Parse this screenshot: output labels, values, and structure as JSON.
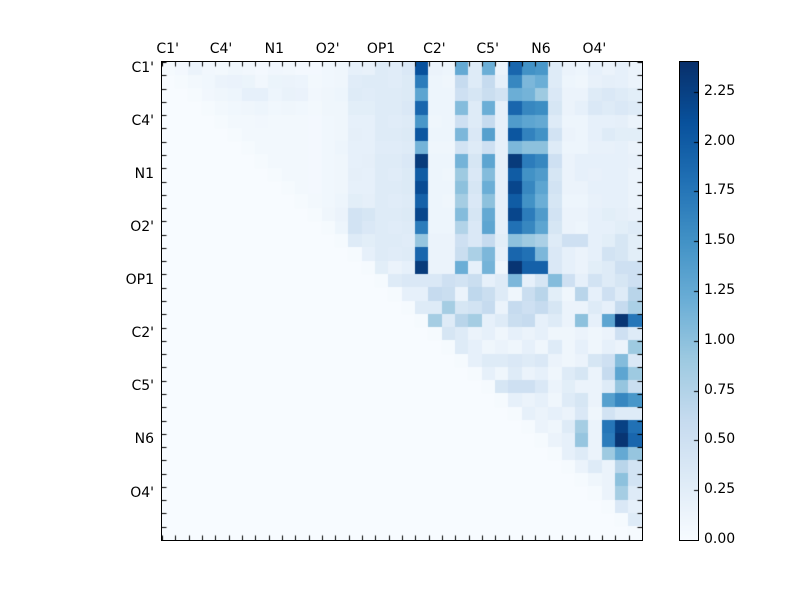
{
  "figure": {
    "background": "#ffffff",
    "axis_color": "#000000"
  },
  "chart_data": {
    "type": "heatmap",
    "title": "",
    "xlabel": "",
    "ylabel": "",
    "n": 36,
    "grid": false,
    "legend_position": "colorbar-right",
    "axis_tick_labels": [
      "C1'",
      "C4'",
      "N1",
      "O2'",
      "OP1",
      "C2'",
      "C5'",
      "N6",
      "O4'"
    ],
    "label_step": 4,
    "label_offset": 0.5,
    "vmin": 0.0,
    "vmax": 2.4,
    "colorbar": {
      "tick_values": [
        0.0,
        0.25,
        0.5,
        0.75,
        1.0,
        1.25,
        1.5,
        1.75,
        2.0,
        2.25
      ],
      "tick_labels": [
        "0.00",
        "0.25",
        "0.50",
        "0.75",
        "1.00",
        "1.25",
        "1.50",
        "1.75",
        "2.00",
        "2.25"
      ]
    },
    "colormap": {
      "name": "Blues",
      "stops": [
        {
          "t": 0.0,
          "c": "#f7fbff"
        },
        {
          "t": 0.125,
          "c": "#deebf7"
        },
        {
          "t": 0.25,
          "c": "#c6dbef"
        },
        {
          "t": 0.375,
          "c": "#9ecae1"
        },
        {
          "t": 0.5,
          "c": "#6baed6"
        },
        {
          "t": 0.625,
          "c": "#4292c6"
        },
        {
          "t": 0.75,
          "c": "#2171b5"
        },
        {
          "t": 0.875,
          "c": "#08519c"
        },
        {
          "t": 1.0,
          "c": "#08306b"
        }
      ]
    },
    "matrix": [
      [
        0.02,
        0.05,
        0.15,
        0.07,
        0.06,
        0.1,
        0.07,
        0.05,
        0.09,
        0.07,
        0.05,
        0.05,
        0.08,
        0.1,
        0.2,
        0.18,
        0.3,
        0.28,
        0.35,
        2.1,
        0.15,
        0.12,
        1.25,
        0.3,
        1.2,
        0.15,
        1.9,
        1.5,
        1.45,
        0.3,
        0.15,
        0.12,
        0.2,
        0.15,
        0.2,
        0.15
      ],
      [
        0,
        0.02,
        0.06,
        0.08,
        0.15,
        0.16,
        0.14,
        0.07,
        0.14,
        0.15,
        0.13,
        0.06,
        0.08,
        0.1,
        0.28,
        0.3,
        0.3,
        0.28,
        0.32,
        1.7,
        0.12,
        0.1,
        0.6,
        0.3,
        0.6,
        0.2,
        1.6,
        1.1,
        1.2,
        0.3,
        0.12,
        0.1,
        0.18,
        0.22,
        0.2,
        0.15
      ],
      [
        0,
        0,
        0.02,
        0.07,
        0.1,
        0.12,
        0.2,
        0.2,
        0.12,
        0.17,
        0.16,
        0.07,
        0.1,
        0.12,
        0.3,
        0.28,
        0.3,
        0.3,
        0.32,
        1.3,
        0.12,
        0.12,
        0.5,
        0.4,
        0.55,
        0.45,
        1.2,
        1.15,
        0.9,
        0.35,
        0.15,
        0.15,
        0.3,
        0.35,
        0.3,
        0.25
      ],
      [
        0,
        0,
        0,
        0.02,
        0.06,
        0.08,
        0.1,
        0.12,
        0.08,
        0.1,
        0.08,
        0.06,
        0.1,
        0.1,
        0.25,
        0.25,
        0.3,
        0.3,
        0.35,
        1.9,
        0.12,
        0.12,
        1.05,
        0.3,
        1.2,
        0.2,
        1.9,
        1.6,
        1.55,
        0.4,
        0.15,
        0.2,
        0.35,
        0.3,
        0.35,
        0.3
      ],
      [
        0,
        0,
        0,
        0,
        0.02,
        0.06,
        0.06,
        0.07,
        0.06,
        0.06,
        0.06,
        0.05,
        0.08,
        0.1,
        0.2,
        0.2,
        0.3,
        0.28,
        0.3,
        1.45,
        0.1,
        0.12,
        0.5,
        0.3,
        0.6,
        0.2,
        1.4,
        1.3,
        1.25,
        0.3,
        0.12,
        0.12,
        0.2,
        0.2,
        0.22,
        0.15
      ],
      [
        0,
        0,
        0,
        0,
        0,
        0.02,
        0.06,
        0.06,
        0.06,
        0.06,
        0.06,
        0.05,
        0.08,
        0.1,
        0.22,
        0.2,
        0.3,
        0.3,
        0.32,
        2.05,
        0.12,
        0.12,
        1.1,
        0.35,
        1.35,
        0.2,
        2.05,
        1.65,
        1.5,
        0.45,
        0.15,
        0.12,
        0.2,
        0.3,
        0.25,
        0.25
      ],
      [
        0,
        0,
        0,
        0,
        0,
        0,
        0.02,
        0.06,
        0.06,
        0.06,
        0.06,
        0.05,
        0.08,
        0.12,
        0.2,
        0.2,
        0.28,
        0.28,
        0.3,
        1.15,
        0.1,
        0.1,
        0.45,
        0.3,
        0.5,
        0.2,
        1.1,
        1.0,
        1.0,
        0.3,
        0.12,
        0.12,
        0.18,
        0.18,
        0.2,
        0.15
      ],
      [
        0,
        0,
        0,
        0,
        0,
        0,
        0,
        0.02,
        0.06,
        0.06,
        0.06,
        0.05,
        0.08,
        0.1,
        0.2,
        0.22,
        0.3,
        0.3,
        0.35,
        2.3,
        0.12,
        0.12,
        1.15,
        0.4,
        1.3,
        0.2,
        2.3,
        1.7,
        1.6,
        0.5,
        0.15,
        0.2,
        0.2,
        0.2,
        0.2,
        0.18
      ],
      [
        0,
        0,
        0,
        0,
        0,
        0,
        0,
        0,
        0.02,
        0.06,
        0.06,
        0.05,
        0.08,
        0.1,
        0.22,
        0.2,
        0.3,
        0.28,
        0.32,
        2.0,
        0.12,
        0.1,
        0.9,
        0.35,
        1.05,
        0.2,
        2.0,
        1.5,
        1.4,
        0.4,
        0.15,
        0.2,
        0.18,
        0.2,
        0.2,
        0.15
      ],
      [
        0,
        0,
        0,
        0,
        0,
        0,
        0,
        0,
        0,
        0.02,
        0.06,
        0.05,
        0.08,
        0.1,
        0.2,
        0.2,
        0.3,
        0.3,
        0.32,
        2.15,
        0.12,
        0.12,
        1.0,
        0.4,
        1.2,
        0.2,
        2.2,
        1.6,
        1.3,
        0.45,
        0.15,
        0.15,
        0.2,
        0.2,
        0.2,
        0.15
      ],
      [
        0,
        0,
        0,
        0,
        0,
        0,
        0,
        0,
        0,
        0,
        0.02,
        0.06,
        0.08,
        0.12,
        0.25,
        0.22,
        0.3,
        0.28,
        0.3,
        1.95,
        0.12,
        0.1,
        0.85,
        0.35,
        1.0,
        0.2,
        2.0,
        1.5,
        1.2,
        0.4,
        0.12,
        0.12,
        0.18,
        0.2,
        0.2,
        0.15
      ],
      [
        0,
        0,
        0,
        0,
        0,
        0,
        0,
        0,
        0,
        0,
        0,
        0.02,
        0.1,
        0.15,
        0.45,
        0.4,
        0.3,
        0.3,
        0.32,
        2.2,
        0.12,
        0.12,
        1.05,
        0.4,
        1.25,
        0.2,
        2.2,
        1.7,
        1.4,
        0.45,
        0.15,
        0.15,
        0.2,
        0.25,
        0.22,
        0.18
      ],
      [
        0,
        0,
        0,
        0,
        0,
        0,
        0,
        0,
        0,
        0,
        0,
        0,
        0.02,
        0.12,
        0.45,
        0.35,
        0.3,
        0.28,
        0.3,
        1.7,
        0.12,
        0.12,
        0.75,
        0.35,
        1.3,
        0.2,
        1.8,
        1.6,
        1.3,
        0.4,
        0.15,
        0.12,
        0.2,
        0.2,
        0.25,
        0.3
      ],
      [
        0,
        0,
        0,
        0,
        0,
        0,
        0,
        0,
        0,
        0,
        0,
        0,
        0,
        0.02,
        0.3,
        0.25,
        0.3,
        0.3,
        0.28,
        0.95,
        0.15,
        0.15,
        0.5,
        0.35,
        0.6,
        0.25,
        1.0,
        0.9,
        0.8,
        0.3,
        0.5,
        0.5,
        0.2,
        0.25,
        0.4,
        0.25
      ],
      [
        0,
        0,
        0,
        0,
        0,
        0,
        0,
        0,
        0,
        0,
        0,
        0,
        0,
        0,
        0.02,
        0.2,
        0.3,
        0.28,
        0.3,
        1.9,
        0.15,
        0.15,
        0.55,
        0.8,
        1.1,
        0.2,
        1.9,
        1.8,
        1.1,
        0.35,
        0.2,
        0.15,
        0.2,
        0.45,
        0.4,
        0.25
      ],
      [
        0,
        0,
        0,
        0,
        0,
        0,
        0,
        0,
        0,
        0,
        0,
        0,
        0,
        0,
        0,
        0.02,
        0.25,
        0.15,
        0.2,
        2.3,
        0.15,
        0.15,
        1.2,
        0.2,
        1.15,
        0.1,
        2.35,
        1.95,
        1.95,
        0.35,
        0.2,
        0.15,
        0.25,
        0.3,
        0.5,
        0.5
      ],
      [
        0,
        0,
        0,
        0,
        0,
        0,
        0,
        0,
        0,
        0,
        0,
        0,
        0,
        0,
        0,
        0,
        0.02,
        0.3,
        0.35,
        0.35,
        0.35,
        0.5,
        0.45,
        0.55,
        0.2,
        0.3,
        1.1,
        0.2,
        0.4,
        1.05,
        0.5,
        0.2,
        0.45,
        0.3,
        0.4,
        0.5
      ],
      [
        0,
        0,
        0,
        0,
        0,
        0,
        0,
        0,
        0,
        0,
        0,
        0,
        0,
        0,
        0,
        0,
        0,
        0.02,
        0.2,
        0.2,
        0.6,
        0.55,
        0.15,
        0.65,
        0.55,
        0.3,
        0.1,
        0.55,
        0.7,
        0.25,
        0.1,
        0.7,
        0.2,
        0.5,
        0.3,
        0.7
      ],
      [
        0,
        0,
        0,
        0,
        0,
        0,
        0,
        0,
        0,
        0,
        0,
        0,
        0,
        0,
        0,
        0,
        0,
        0,
        0.02,
        0.3,
        0.3,
        0.85,
        0.4,
        0.45,
        0.6,
        0.15,
        0.6,
        0.5,
        0.6,
        0.4,
        0.15,
        0.15,
        0.3,
        0.2,
        0.6,
        0.8
      ],
      [
        0,
        0,
        0,
        0,
        0,
        0,
        0,
        0,
        0,
        0,
        0,
        0,
        0,
        0,
        0,
        0,
        0,
        0,
        0,
        0.02,
        0.85,
        0.3,
        0.7,
        0.85,
        0.2,
        0.3,
        0.55,
        0.6,
        0.2,
        0.3,
        0.15,
        1.0,
        0.2,
        1.3,
        2.35,
        1.75
      ],
      [
        0,
        0,
        0,
        0,
        0,
        0,
        0,
        0,
        0,
        0,
        0,
        0,
        0,
        0,
        0,
        0,
        0,
        0,
        0,
        0,
        0.02,
        0.4,
        0.3,
        0.15,
        0.2,
        0.1,
        0.2,
        0.15,
        0.2,
        0.1,
        0.1,
        0.15,
        0.1,
        0.15,
        0.5,
        0.3
      ],
      [
        0,
        0,
        0,
        0,
        0,
        0,
        0,
        0,
        0,
        0,
        0,
        0,
        0,
        0,
        0,
        0,
        0,
        0,
        0,
        0,
        0,
        0.02,
        0.3,
        0.2,
        0.1,
        0.15,
        0.1,
        0.2,
        0.1,
        0.3,
        0.1,
        0.2,
        0.1,
        0.2,
        0.15,
        0.9
      ],
      [
        0,
        0,
        0,
        0,
        0,
        0,
        0,
        0,
        0,
        0,
        0,
        0,
        0,
        0,
        0,
        0,
        0,
        0,
        0,
        0,
        0,
        0,
        0.02,
        0.2,
        0.3,
        0.3,
        0.35,
        0.3,
        0.35,
        0.15,
        0.1,
        0.15,
        0.4,
        0.5,
        1.05,
        0.35
      ],
      [
        0,
        0,
        0,
        0,
        0,
        0,
        0,
        0,
        0,
        0,
        0,
        0,
        0,
        0,
        0,
        0,
        0,
        0,
        0,
        0,
        0,
        0,
        0,
        0.02,
        0.2,
        0.1,
        0.3,
        0.15,
        0.2,
        0.1,
        0.3,
        0.4,
        0.15,
        0.6,
        1.3,
        0.9
      ],
      [
        0,
        0,
        0,
        0,
        0,
        0,
        0,
        0,
        0,
        0,
        0,
        0,
        0,
        0,
        0,
        0,
        0,
        0,
        0,
        0,
        0,
        0,
        0,
        0,
        0.02,
        0.4,
        0.5,
        0.5,
        0.35,
        0.15,
        0.25,
        0.15,
        0.15,
        0.3,
        0.95,
        0.55
      ],
      [
        0,
        0,
        0,
        0,
        0,
        0,
        0,
        0,
        0,
        0,
        0,
        0,
        0,
        0,
        0,
        0,
        0,
        0,
        0,
        0,
        0,
        0,
        0,
        0,
        0,
        0.02,
        0.2,
        0.15,
        0.2,
        0.1,
        0.3,
        0.4,
        0.15,
        1.35,
        1.6,
        1.45
      ],
      [
        0,
        0,
        0,
        0,
        0,
        0,
        0,
        0,
        0,
        0,
        0,
        0,
        0,
        0,
        0,
        0,
        0,
        0,
        0,
        0,
        0,
        0,
        0,
        0,
        0,
        0,
        0.02,
        0.2,
        0.15,
        0.2,
        0.15,
        0.35,
        0.1,
        0.45,
        0.3,
        0.3
      ],
      [
        0,
        0,
        0,
        0,
        0,
        0,
        0,
        0,
        0,
        0,
        0,
        0,
        0,
        0,
        0,
        0,
        0,
        0,
        0,
        0,
        0,
        0,
        0,
        0,
        0,
        0,
        0,
        0.02,
        0.15,
        0.1,
        0.3,
        0.85,
        0.15,
        1.75,
        2.25,
        1.8
      ],
      [
        0,
        0,
        0,
        0,
        0,
        0,
        0,
        0,
        0,
        0,
        0,
        0,
        0,
        0,
        0,
        0,
        0,
        0,
        0,
        0,
        0,
        0,
        0,
        0,
        0,
        0,
        0,
        0,
        0.02,
        0.15,
        0.2,
        0.95,
        0.15,
        1.7,
        2.35,
        1.9
      ],
      [
        0,
        0,
        0,
        0,
        0,
        0,
        0,
        0,
        0,
        0,
        0,
        0,
        0,
        0,
        0,
        0,
        0,
        0,
        0,
        0,
        0,
        0,
        0,
        0,
        0,
        0,
        0,
        0,
        0,
        0.02,
        0.2,
        0.3,
        0.15,
        0.9,
        1.25,
        0.95
      ],
      [
        0,
        0,
        0,
        0,
        0,
        0,
        0,
        0,
        0,
        0,
        0,
        0,
        0,
        0,
        0,
        0,
        0,
        0,
        0,
        0,
        0,
        0,
        0,
        0,
        0,
        0,
        0,
        0,
        0,
        0,
        0.02,
        0.15,
        0.3,
        0.15,
        0.7,
        0.45
      ],
      [
        0,
        0,
        0,
        0,
        0,
        0,
        0,
        0,
        0,
        0,
        0,
        0,
        0,
        0,
        0,
        0,
        0,
        0,
        0,
        0,
        0,
        0,
        0,
        0,
        0,
        0,
        0,
        0,
        0,
        0,
        0,
        0.02,
        0.1,
        0.15,
        1.0,
        0.45
      ],
      [
        0,
        0,
        0,
        0,
        0,
        0,
        0,
        0,
        0,
        0,
        0,
        0,
        0,
        0,
        0,
        0,
        0,
        0,
        0,
        0,
        0,
        0,
        0,
        0,
        0,
        0,
        0,
        0,
        0,
        0,
        0,
        0,
        0.02,
        0.15,
        0.85,
        0.3
      ],
      [
        0,
        0,
        0,
        0,
        0,
        0,
        0,
        0,
        0,
        0,
        0,
        0,
        0,
        0,
        0,
        0,
        0,
        0,
        0,
        0,
        0,
        0,
        0,
        0,
        0,
        0,
        0,
        0,
        0,
        0,
        0,
        0,
        0,
        0.02,
        0.35,
        0.2
      ],
      [
        0,
        0,
        0,
        0,
        0,
        0,
        0,
        0,
        0,
        0,
        0,
        0,
        0,
        0,
        0,
        0,
        0,
        0,
        0,
        0,
        0,
        0,
        0,
        0,
        0,
        0,
        0,
        0,
        0,
        0,
        0,
        0,
        0,
        0,
        0.02,
        0.3
      ],
      [
        0,
        0,
        0,
        0,
        0,
        0,
        0,
        0,
        0,
        0,
        0,
        0,
        0,
        0,
        0,
        0,
        0,
        0,
        0,
        0,
        0,
        0,
        0,
        0,
        0,
        0,
        0,
        0,
        0,
        0,
        0,
        0,
        0,
        0,
        0,
        0.02
      ]
    ]
  }
}
